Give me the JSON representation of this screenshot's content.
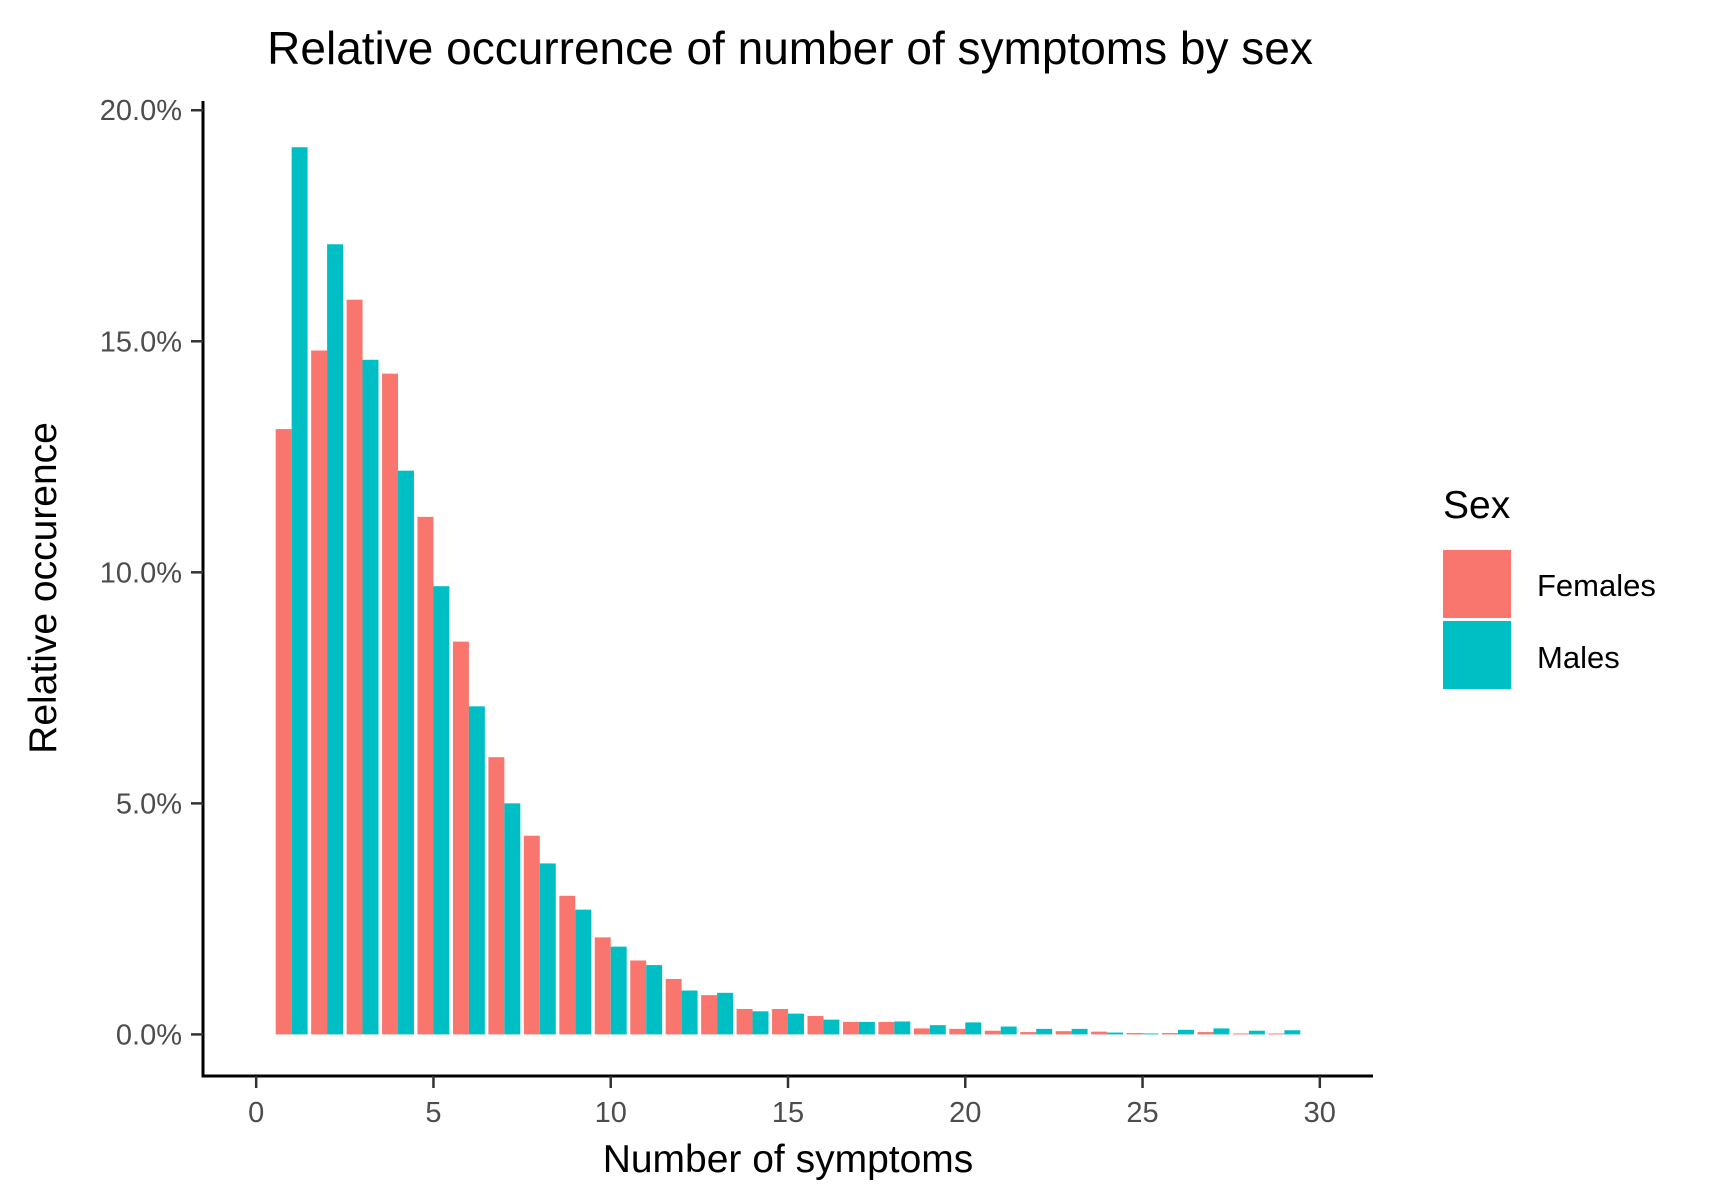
{
  "chart_data": {
    "type": "bar",
    "title": "Relative occurrence of number of symptoms by sex",
    "xlabel": "Number of symptoms",
    "ylabel": "Relative occurence",
    "x": [
      1,
      2,
      3,
      4,
      5,
      6,
      7,
      8,
      9,
      10,
      11,
      12,
      13,
      14,
      15,
      16,
      17,
      18,
      19,
      20,
      21,
      22,
      23,
      24,
      25,
      26,
      27,
      28,
      29
    ],
    "series": [
      {
        "name": "Females",
        "color": "#F8766D",
        "values": [
          13.1,
          14.8,
          15.9,
          14.3,
          11.2,
          8.5,
          6.0,
          4.3,
          3.0,
          2.1,
          1.6,
          1.2,
          0.85,
          0.55,
          0.55,
          0.4,
          0.27,
          0.27,
          0.13,
          0.12,
          0.08,
          0.05,
          0.07,
          0.06,
          0.03,
          0.03,
          0.05,
          0.02,
          0.02
        ]
      },
      {
        "name": "Males",
        "color": "#00BFC4",
        "values": [
          19.2,
          17.1,
          14.6,
          12.2,
          9.7,
          7.1,
          5.0,
          3.7,
          2.7,
          1.9,
          1.5,
          0.95,
          0.9,
          0.5,
          0.45,
          0.32,
          0.27,
          0.28,
          0.2,
          0.26,
          0.17,
          0.12,
          0.12,
          0.04,
          0.02,
          0.1,
          0.13,
          0.08,
          0.09
        ]
      }
    ],
    "xlim": [
      -1.5,
      31.5
    ],
    "ylim": [
      -0.9,
      20.2
    ],
    "x_ticks": [
      0,
      5,
      10,
      15,
      20,
      25,
      30
    ],
    "x_tick_labels": [
      "0",
      "5",
      "10",
      "15",
      "20",
      "25",
      "30"
    ],
    "y_ticks": [
      0,
      5,
      10,
      15,
      20
    ],
    "y_tick_labels": [
      "0.0%",
      "5.0%",
      "10.0%",
      "15.0%",
      "20.0%"
    ],
    "grid": false,
    "legend": {
      "title": "Sex",
      "placement": "right",
      "entries": [
        "Females",
        "Males"
      ]
    }
  }
}
